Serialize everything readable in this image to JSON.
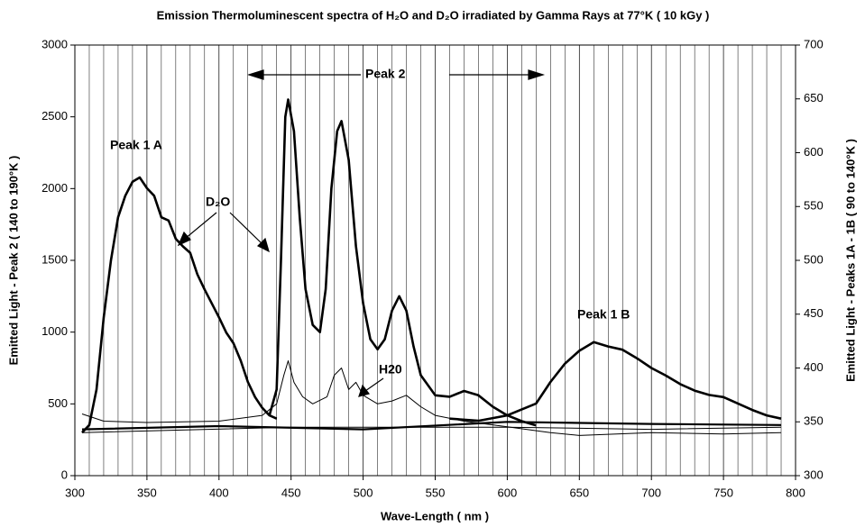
{
  "chart_data": {
    "type": "line",
    "title": "Emission Thermoluminescent spectra of H₂O and D₂O irradiated by Gamma Rays at 77°K ( 10 kGy )",
    "x_label": "Wave-Length ( nm )",
    "y_label": "Emitted Light - Peak 2 ( 140 to 190°K )",
    "y2_label": "Emitted Light - Peaks 1A - 1B ( 90 to 140°K )",
    "annotations": [
      "Peak 1 A",
      "Peak 1 B",
      "Peak 2",
      "D₂O",
      "H20"
    ],
    "xlim": [
      300,
      800
    ],
    "xticks": [
      300,
      350,
      400,
      450,
      500,
      550,
      600,
      650,
      700,
      750,
      800
    ],
    "ylim": [
      0,
      3000
    ],
    "yticks": [
      0,
      500,
      1000,
      1500,
      2000,
      2500,
      3000
    ],
    "y2lim": [
      300,
      700
    ],
    "y2ticks": [
      300,
      350,
      400,
      450,
      500,
      550,
      600,
      650,
      700
    ],
    "grid": true,
    "series": [
      {
        "color": "#000000",
        "line_width": 2.6,
        "axis": "y2",
        "x": [
          305,
          310,
          315,
          320,
          325,
          330,
          335,
          340,
          345,
          350,
          355,
          360,
          365,
          370,
          375,
          380,
          385,
          390,
          395,
          400,
          405,
          410,
          415,
          420,
          425,
          430,
          435,
          440
        ],
        "values": [
          340,
          347,
          380,
          447,
          500,
          540,
          560,
          573,
          577,
          567,
          560,
          540,
          537,
          520,
          513,
          507,
          487,
          473,
          460,
          447,
          433,
          423,
          407,
          387,
          373,
          363,
          356,
          353
        ]
      },
      {
        "color": "#000000",
        "line_width": 2.6,
        "axis": "y",
        "x": [
          435,
          440,
          443,
          446,
          448,
          452,
          456,
          460,
          465,
          470,
          474,
          478,
          482,
          485,
          490,
          495,
          500,
          505,
          510,
          515,
          520,
          525,
          530,
          535,
          540,
          550,
          560,
          570,
          580,
          590,
          600,
          610,
          620
        ],
        "values": [
          420,
          600,
          1500,
          2500,
          2620,
          2400,
          1800,
          1300,
          1050,
          1000,
          1300,
          2000,
          2400,
          2470,
          2200,
          1600,
          1200,
          950,
          880,
          950,
          1150,
          1250,
          1150,
          900,
          700,
          560,
          550,
          590,
          560,
          480,
          420,
          380,
          350
        ]
      },
      {
        "color": "#000000",
        "line_width": 2.6,
        "axis": "y2",
        "x": [
          560,
          580,
          600,
          620,
          630,
          640,
          650,
          660,
          670,
          680,
          690,
          700,
          710,
          720,
          730,
          740,
          750,
          760,
          770,
          780,
          790
        ],
        "values": [
          353,
          351,
          356,
          367,
          387,
          404,
          416,
          424,
          420,
          417,
          409,
          400,
          393,
          385,
          379,
          375,
          373,
          367,
          361,
          356,
          353
        ]
      },
      {
        "color": "#000000",
        "line_width": 1,
        "axis": "y",
        "x": [
          305,
          320,
          350,
          400,
          430,
          440,
          445,
          448,
          452,
          458,
          465,
          475,
          480,
          485,
          490,
          495,
          500,
          510,
          520,
          530,
          540,
          550,
          570,
          600,
          630,
          650,
          700,
          750,
          790
        ],
        "values": [
          430,
          380,
          370,
          380,
          420,
          500,
          700,
          800,
          650,
          550,
          500,
          550,
          700,
          750,
          600,
          650,
          560,
          500,
          520,
          560,
          480,
          420,
          380,
          340,
          300,
          280,
          300,
          290,
          300
        ]
      },
      {
        "color": "#000000",
        "line_width": 2.2,
        "axis": "y2",
        "x": [
          305,
          400,
          500,
          600,
          700,
          790
        ],
        "values": [
          343,
          346,
          343,
          350,
          348,
          347
        ]
      },
      {
        "color": "#000000",
        "line_width": 1,
        "axis": "y2",
        "x": [
          305,
          450,
          600,
          700,
          790
        ],
        "values": [
          340,
          345,
          345,
          343,
          345
        ]
      }
    ]
  }
}
